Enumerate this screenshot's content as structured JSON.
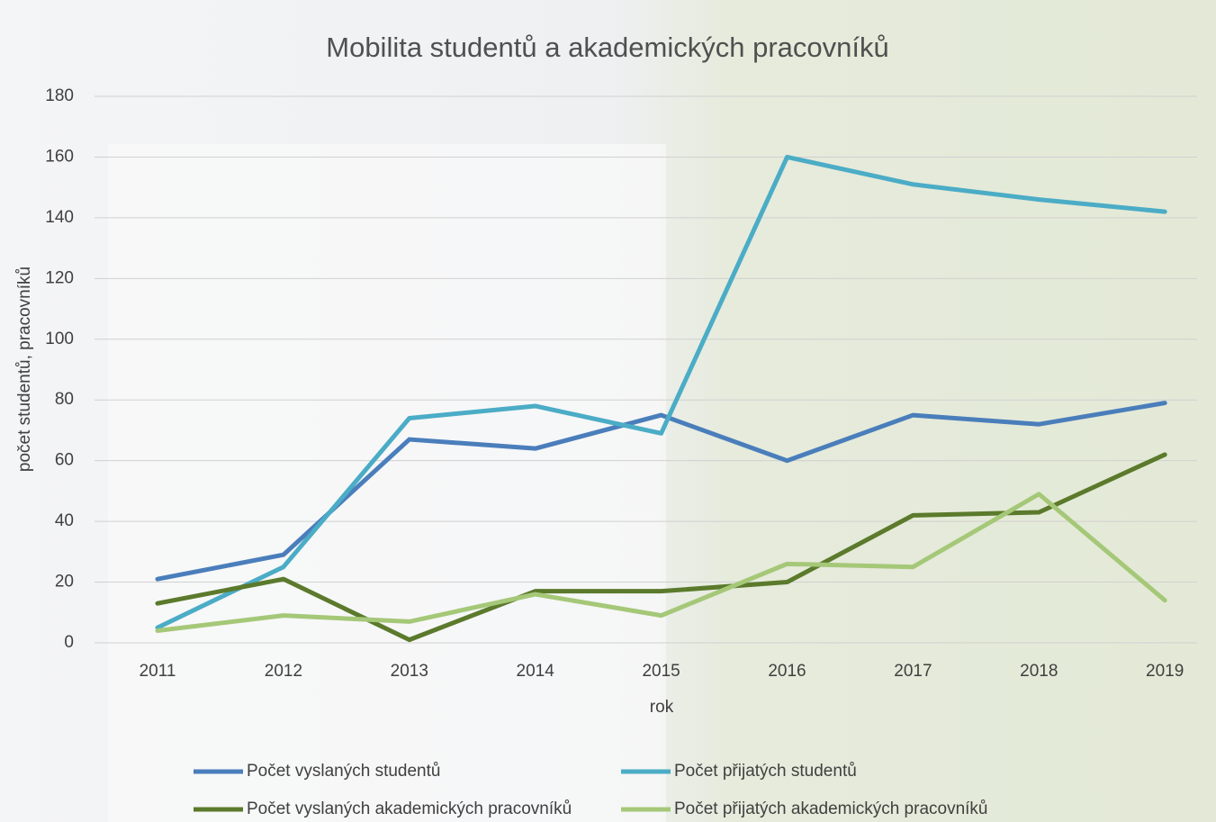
{
  "chart_data": {
    "type": "line",
    "title": "Mobilita studentů a akademických pracovníků",
    "x_label": "rok",
    "y_label": "počet studentů, pracovníků",
    "categories": [
      "2011",
      "2012",
      "2013",
      "2014",
      "2015",
      "2016",
      "2017",
      "2018",
      "2019"
    ],
    "series": [
      {
        "name": "Počet vyslaných studentů",
        "color": "#4a7ebb",
        "values": [
          21,
          29,
          67,
          64,
          75,
          60,
          75,
          72,
          79
        ]
      },
      {
        "name": "Počet přijatých studentů",
        "color": "#4bacc6",
        "values": [
          5,
          25,
          74,
          78,
          69,
          160,
          151,
          146,
          142
        ]
      },
      {
        "name": "Počet vyslaných akademických pracovníků",
        "color": "#5b7a2c",
        "values": [
          13,
          21,
          1,
          17,
          17,
          20,
          42,
          43,
          62
        ]
      },
      {
        "name": "Počet přijatých akademických pracovníků",
        "color": "#a5c878",
        "values": [
          4,
          9,
          7,
          16,
          9,
          26,
          25,
          49,
          14
        ]
      }
    ],
    "ylim": [
      0,
      180
    ],
    "yticks": [
      0,
      20,
      40,
      60,
      80,
      100,
      120,
      140,
      160,
      180
    ],
    "grid": true,
    "legend": "bottom"
  }
}
